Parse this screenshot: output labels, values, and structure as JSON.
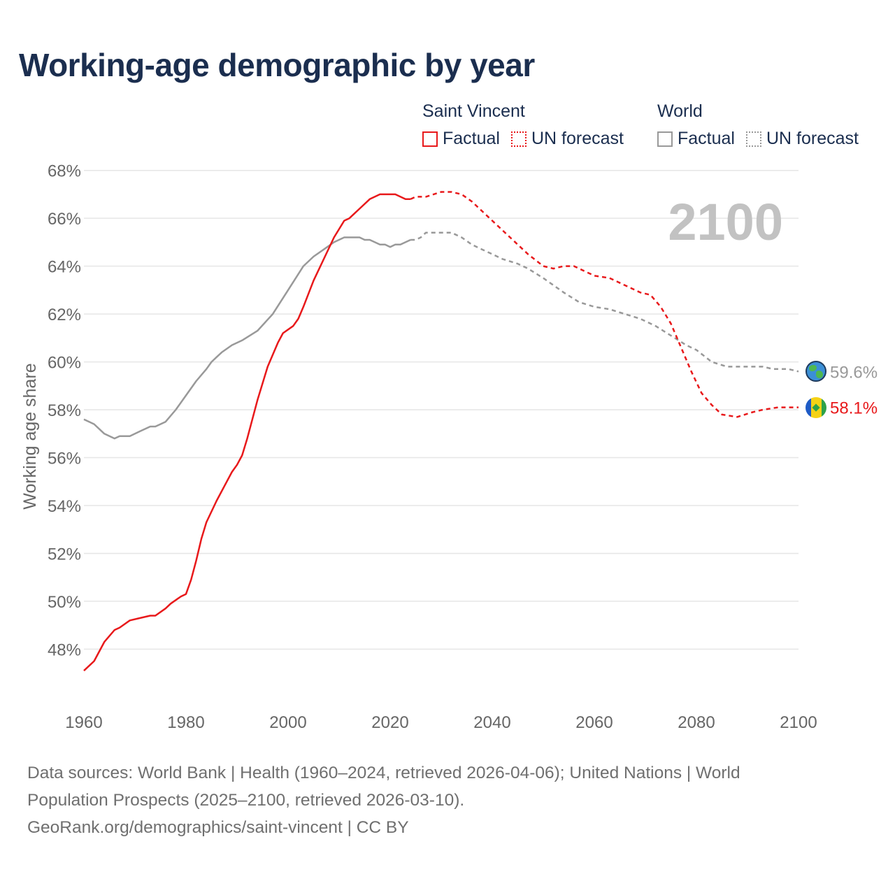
{
  "page": {
    "title": "Working-age demographic by year"
  },
  "legend": {
    "groups": [
      {
        "name": "Saint Vincent",
        "color": "#e8191b",
        "items": [
          {
            "label": "Factual",
            "style": "solid"
          },
          {
            "label": "UN forecast",
            "style": "dotted"
          }
        ]
      },
      {
        "name": "World",
        "color": "#999999",
        "items": [
          {
            "label": "Factual",
            "style": "solid"
          },
          {
            "label": "UN forecast",
            "style": "dotted"
          }
        ]
      }
    ]
  },
  "footer": {
    "line1": "Data sources: World Bank | Health (1960–2024, retrieved 2026-04-06); United Nations | World",
    "line2": "Population Prospects (2025–2100, retrieved 2026-03-10).",
    "line3": "GeoRank.org/demographics/saint-vincent | CC BY"
  },
  "chart_data": {
    "type": "line",
    "title": "Working-age demographic by year",
    "xlabel": "",
    "ylabel": "Working age share",
    "xlim": [
      1960,
      2100
    ],
    "ylim": [
      46.2,
      68.4
    ],
    "x_ticks": [
      1960,
      1980,
      2000,
      2020,
      2040,
      2060,
      2080,
      2100
    ],
    "y_ticks": [
      48,
      50,
      52,
      54,
      56,
      58,
      60,
      62,
      64,
      66,
      68
    ],
    "y_tick_suffix": "%",
    "grid": true,
    "year_watermark": "2100",
    "factual_end_year": 2024,
    "series": [
      {
        "name": "World",
        "color": "#999999",
        "end_label": "59.6%",
        "icon": "globe-icon",
        "points": [
          [
            1960,
            57.6
          ],
          [
            1962,
            57.4
          ],
          [
            1964,
            57.0
          ],
          [
            1966,
            56.8
          ],
          [
            1967,
            56.9
          ],
          [
            1969,
            56.9
          ],
          [
            1971,
            57.1
          ],
          [
            1973,
            57.3
          ],
          [
            1974,
            57.3
          ],
          [
            1976,
            57.5
          ],
          [
            1978,
            58.0
          ],
          [
            1980,
            58.6
          ],
          [
            1982,
            59.2
          ],
          [
            1984,
            59.7
          ],
          [
            1985,
            60.0
          ],
          [
            1986,
            60.2
          ],
          [
            1987,
            60.4
          ],
          [
            1989,
            60.7
          ],
          [
            1991,
            60.9
          ],
          [
            1994,
            61.3
          ],
          [
            1997,
            62.0
          ],
          [
            2000,
            63.0
          ],
          [
            2003,
            64.0
          ],
          [
            2005,
            64.4
          ],
          [
            2007,
            64.7
          ],
          [
            2009,
            65.0
          ],
          [
            2011,
            65.2
          ],
          [
            2014,
            65.2
          ],
          [
            2015,
            65.1
          ],
          [
            2016,
            65.1
          ],
          [
            2018,
            64.9
          ],
          [
            2019,
            64.9
          ],
          [
            2020,
            64.8
          ],
          [
            2021,
            64.9
          ],
          [
            2022,
            64.9
          ],
          [
            2024,
            65.1
          ],
          [
            2025,
            65.1
          ],
          [
            2026,
            65.2
          ],
          [
            2027,
            65.4
          ],
          [
            2029,
            65.4
          ],
          [
            2032,
            65.4
          ],
          [
            2034,
            65.2
          ],
          [
            2036,
            64.9
          ],
          [
            2038,
            64.7
          ],
          [
            2040,
            64.5
          ],
          [
            2042,
            64.3
          ],
          [
            2045,
            64.1
          ],
          [
            2047,
            63.9
          ],
          [
            2050,
            63.5
          ],
          [
            2052,
            63.2
          ],
          [
            2054,
            62.9
          ],
          [
            2057,
            62.5
          ],
          [
            2060,
            62.3
          ],
          [
            2063,
            62.2
          ],
          [
            2066,
            62.0
          ],
          [
            2069,
            61.8
          ],
          [
            2072,
            61.5
          ],
          [
            2075,
            61.1
          ],
          [
            2078,
            60.7
          ],
          [
            2080,
            60.5
          ],
          [
            2083,
            60.0
          ],
          [
            2086,
            59.8
          ],
          [
            2090,
            59.8
          ],
          [
            2093,
            59.8
          ],
          [
            2095,
            59.7
          ],
          [
            2098,
            59.7
          ],
          [
            2100,
            59.6
          ]
        ]
      },
      {
        "name": "Saint Vincent",
        "color": "#e8191b",
        "end_label": "58.1%",
        "icon": "saint-vincent-flag-icon",
        "points": [
          [
            1960,
            47.1
          ],
          [
            1962,
            47.5
          ],
          [
            1964,
            48.3
          ],
          [
            1966,
            48.8
          ],
          [
            1967,
            48.9
          ],
          [
            1969,
            49.2
          ],
          [
            1971,
            49.3
          ],
          [
            1973,
            49.4
          ],
          [
            1974,
            49.4
          ],
          [
            1976,
            49.7
          ],
          [
            1977,
            49.9
          ],
          [
            1979,
            50.2
          ],
          [
            1980,
            50.3
          ],
          [
            1981,
            50.9
          ],
          [
            1982,
            51.7
          ],
          [
            1983,
            52.6
          ],
          [
            1984,
            53.3
          ],
          [
            1986,
            54.2
          ],
          [
            1988,
            55.0
          ],
          [
            1989,
            55.4
          ],
          [
            1990,
            55.7
          ],
          [
            1991,
            56.1
          ],
          [
            1992,
            56.8
          ],
          [
            1994,
            58.4
          ],
          [
            1996,
            59.8
          ],
          [
            1998,
            60.8
          ],
          [
            1999,
            61.2
          ],
          [
            2001,
            61.5
          ],
          [
            2002,
            61.8
          ],
          [
            2003,
            62.3
          ],
          [
            2005,
            63.4
          ],
          [
            2007,
            64.3
          ],
          [
            2009,
            65.2
          ],
          [
            2011,
            65.9
          ],
          [
            2012,
            66.0
          ],
          [
            2014,
            66.4
          ],
          [
            2016,
            66.8
          ],
          [
            2018,
            67.0
          ],
          [
            2021,
            67.0
          ],
          [
            2023,
            66.8
          ],
          [
            2024,
            66.8
          ],
          [
            2025,
            66.9
          ],
          [
            2027,
            66.9
          ],
          [
            2030,
            67.1
          ],
          [
            2032,
            67.1
          ],
          [
            2034,
            67.0
          ],
          [
            2036,
            66.7
          ],
          [
            2038,
            66.3
          ],
          [
            2040,
            65.9
          ],
          [
            2042,
            65.5
          ],
          [
            2045,
            64.9
          ],
          [
            2047,
            64.5
          ],
          [
            2050,
            64.0
          ],
          [
            2052,
            63.9
          ],
          [
            2054,
            64.0
          ],
          [
            2056,
            64.0
          ],
          [
            2058,
            63.8
          ],
          [
            2060,
            63.6
          ],
          [
            2063,
            63.5
          ],
          [
            2066,
            63.2
          ],
          [
            2069,
            62.9
          ],
          [
            2071,
            62.8
          ],
          [
            2073,
            62.3
          ],
          [
            2075,
            61.6
          ],
          [
            2077,
            60.6
          ],
          [
            2079,
            59.6
          ],
          [
            2081,
            58.7
          ],
          [
            2083,
            58.2
          ],
          [
            2085,
            57.8
          ],
          [
            2088,
            57.7
          ],
          [
            2091,
            57.9
          ],
          [
            2093,
            58.0
          ],
          [
            2096,
            58.1
          ],
          [
            2098,
            58.1
          ],
          [
            2100,
            58.1
          ]
        ]
      }
    ]
  }
}
